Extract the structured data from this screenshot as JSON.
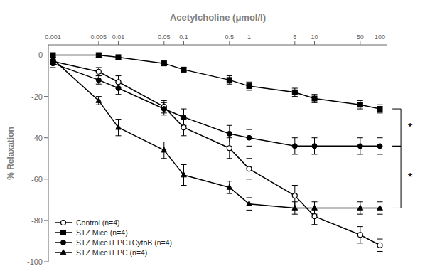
{
  "chart_data": {
    "type": "line",
    "xlabel": "Acetylcholine (μmol/l)",
    "ylabel": "% Relaxation",
    "log": "x",
    "grid": false,
    "legend": "lower left",
    "x": [
      0.001,
      0.005,
      0.01,
      0.05,
      0.1,
      0.5,
      1,
      5,
      10,
      50,
      100
    ],
    "xlim": [
      0.00085,
      130
    ],
    "xticks": [
      0.001,
      0.005,
      0.01,
      0.05,
      0.1,
      0.5,
      1,
      5,
      10,
      50,
      100
    ],
    "ylim": [
      -100,
      5
    ],
    "yticks": [
      0,
      -20,
      -40,
      -60,
      -80,
      -100
    ],
    "series": [
      {
        "name": "Control (n=4)",
        "color": "#000000",
        "marker": "open_circle",
        "line_style": "solid",
        "values": [
          -3,
          -8,
          -13,
          -25,
          -35,
          -45,
          -55,
          -68,
          -78,
          -87,
          -92
        ],
        "errors": [
          1,
          2,
          3,
          3,
          4,
          5,
          5,
          5,
          4,
          4,
          3
        ]
      },
      {
        "name": "STZ Mice (n=4)",
        "color": "#000000",
        "marker": "square",
        "line_style": "solid",
        "values": [
          0,
          0,
          -1,
          -4,
          -7,
          -12,
          -15,
          -18,
          -21,
          -24,
          -26
        ],
        "errors": [
          1,
          1,
          1,
          1,
          1,
          2,
          2,
          2,
          2,
          2,
          2
        ]
      },
      {
        "name": "STZ Mice+EPC+CytoB (n=4)",
        "color": "#000000",
        "marker": "circle",
        "line_style": "solid",
        "values": [
          -4,
          -12,
          -16,
          -26,
          -30,
          -38,
          -40,
          -44,
          -44,
          -44,
          -44
        ],
        "errors": [
          2,
          2,
          3,
          3,
          4,
          4,
          4,
          4,
          4,
          4,
          4
        ]
      },
      {
        "name": "STZ Mice+EPC (n=4)",
        "color": "#000000",
        "marker": "triangle",
        "line_style": "solid",
        "values": [
          -2,
          -22,
          -35,
          -46,
          -58,
          -64,
          -72,
          -74,
          -74,
          -74,
          -74
        ],
        "errors": [
          1,
          2,
          4,
          4,
          5,
          3,
          3,
          3,
          3,
          3,
          3
        ]
      }
    ],
    "annotations": [
      {
        "text": "*",
        "y_top": -26,
        "y_bottom": -44
      },
      {
        "text": "*",
        "y_top": -44,
        "y_bottom": -74
      }
    ]
  }
}
